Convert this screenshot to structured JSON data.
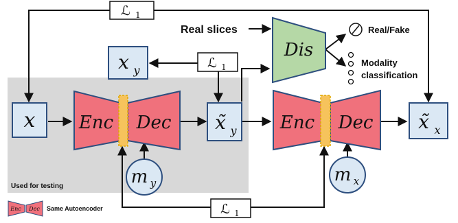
{
  "loss_label": "ℒ",
  "loss_subscript": "1",
  "inputs": {
    "x": "x",
    "x_y_base": "x",
    "x_y_sub": "y",
    "x_y_tilde_base": "x̃",
    "x_y_tilde_sub": "y",
    "x_x_tilde_base": "x̃",
    "x_x_tilde_sub": "x"
  },
  "modality": {
    "m_y_base": "m",
    "m_y_sub": "y",
    "m_x_base": "m",
    "m_x_sub": "x"
  },
  "autoencoder": {
    "enc": "Enc",
    "dec": "Dec"
  },
  "discriminator": {
    "label": "Dis",
    "real_slices": "Real slices",
    "real_fake": "Real/Fake",
    "modality_classification_line1": "Modality",
    "modality_classification_line2": "classification"
  },
  "testing_label": "Used for testing",
  "legend": {
    "enc": "Enc",
    "dec": "Dec",
    "text": "Same Autoencoder"
  },
  "colors": {
    "box_fill": "#dbe8f4",
    "box_stroke": "#2e4f7f",
    "autoencoder_fill": "#f0717c",
    "discriminator_fill": "#b5d8a6",
    "latent_fill": "#f6c35c",
    "testing_region": "#d8d8d8"
  }
}
